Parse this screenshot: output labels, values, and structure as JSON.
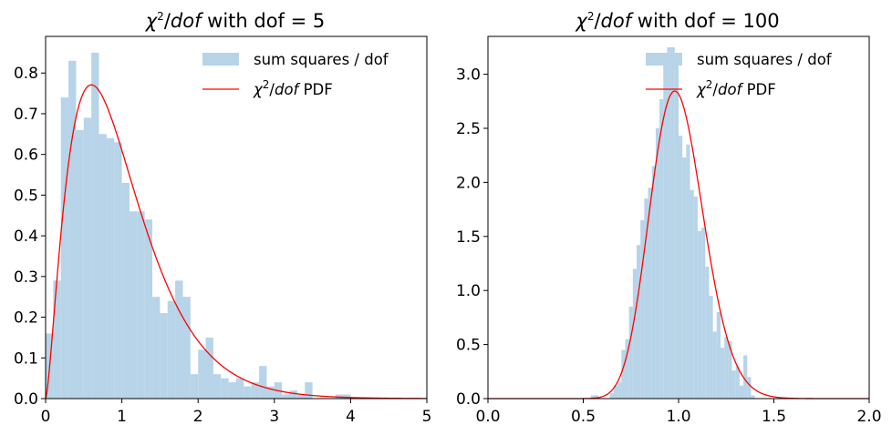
{
  "chart_data": [
    {
      "type": "histogram",
      "title": {
        "chi": "χ",
        "sup": "2",
        "slash": "/",
        "dof": "dof",
        "rest": " with dof = 5"
      },
      "xlim": [
        0,
        5
      ],
      "ylim": [
        0,
        0.89
      ],
      "xticks": [
        0,
        1,
        2,
        3,
        4,
        5
      ],
      "xtick_labels": [
        "0",
        "1",
        "2",
        "3",
        "4",
        "5"
      ],
      "yticks": [
        0.0,
        0.1,
        0.2,
        0.3,
        0.4,
        0.5,
        0.6,
        0.7,
        0.8
      ],
      "ytick_labels": [
        "0.0",
        "0.1",
        "0.2",
        "0.3",
        "0.4",
        "0.5",
        "0.6",
        "0.7",
        "0.8"
      ],
      "grid": false,
      "legend_position": "top-right",
      "series": [
        {
          "name": "sum squares / dof",
          "kind": "histogram",
          "color": "#b7d4e8",
          "bin_edges": [
            0.0,
            0.1,
            0.2,
            0.3,
            0.4,
            0.5,
            0.6,
            0.7,
            0.8,
            0.9,
            1.0,
            1.1,
            1.2,
            1.3,
            1.4,
            1.5,
            1.6,
            1.7,
            1.8,
            1.9,
            2.0,
            2.1,
            2.2,
            2.3,
            2.4,
            2.5,
            2.6,
            2.7,
            2.8,
            2.9,
            3.0,
            3.1,
            3.2,
            3.3,
            3.4,
            3.5,
            3.6,
            3.7,
            3.8,
            3.9,
            4.0,
            4.1,
            4.2,
            4.3,
            4.4,
            4.5,
            4.6,
            4.7,
            4.8,
            4.9,
            5.0
          ],
          "values": [
            0.16,
            0.29,
            0.74,
            0.83,
            0.66,
            0.69,
            0.85,
            0.65,
            0.64,
            0.63,
            0.53,
            0.46,
            0.46,
            0.44,
            0.25,
            0.21,
            0.24,
            0.29,
            0.25,
            0.06,
            0.12,
            0.15,
            0.06,
            0.05,
            0.04,
            0.05,
            0.03,
            0.04,
            0.08,
            0.03,
            0.04,
            0.01,
            0.02,
            0.01,
            0.04,
            0.0,
            0.0,
            0.0,
            0.01,
            0.01,
            0.0,
            0.0,
            0.0,
            0.0,
            0.0,
            0.0,
            0.0,
            0.0,
            0.0,
            0.0
          ]
        },
        {
          "name": {
            "chi": "χ",
            "sup": "2",
            "slash": "/",
            "dof": "dof",
            "rest": " PDF"
          },
          "kind": "pdf",
          "color": "#ff0000",
          "dof": 5
        }
      ]
    },
    {
      "type": "histogram",
      "title": {
        "chi": "χ",
        "sup": "2",
        "slash": "/",
        "dof": "dof",
        "rest": " with dof = 100"
      },
      "xlim": [
        0.0,
        2.0
      ],
      "ylim": [
        0,
        3.35
      ],
      "xticks": [
        0.0,
        0.5,
        1.0,
        1.5,
        2.0
      ],
      "xtick_labels": [
        "0.0",
        "0.5",
        "1.0",
        "1.5",
        "2.0"
      ],
      "yticks": [
        0.0,
        0.5,
        1.0,
        1.5,
        2.0,
        2.5,
        3.0
      ],
      "ytick_labels": [
        "0.0",
        "0.5",
        "1.0",
        "1.5",
        "2.0",
        "2.5",
        "3.0"
      ],
      "grid": false,
      "legend_position": "top-right",
      "series": [
        {
          "name": "sum squares / dof",
          "kind": "histogram",
          "color": "#b7d4e8",
          "bin_edges": [
            0.54,
            0.56,
            0.58,
            0.6,
            0.62,
            0.64,
            0.66,
            0.68,
            0.7,
            0.72,
            0.74,
            0.76,
            0.78,
            0.8,
            0.82,
            0.84,
            0.86,
            0.88,
            0.9,
            0.92,
            0.94,
            0.96,
            0.98,
            1.0,
            1.02,
            1.04,
            1.06,
            1.08,
            1.1,
            1.12,
            1.14,
            1.16,
            1.18,
            1.2,
            1.22,
            1.24,
            1.26,
            1.28,
            1.3,
            1.32,
            1.34,
            1.36,
            1.38,
            1.4,
            1.42
          ],
          "values": [
            0.03,
            0.03,
            0.0,
            0.0,
            0.0,
            0.05,
            0.12,
            0.15,
            0.45,
            0.55,
            0.85,
            1.2,
            1.42,
            1.65,
            1.85,
            1.95,
            2.15,
            2.5,
            2.77,
            3.1,
            3.25,
            3.25,
            3.1,
            2.43,
            2.23,
            2.35,
            1.93,
            1.87,
            1.55,
            1.58,
            1.22,
            0.95,
            0.62,
            0.8,
            0.47,
            0.57,
            0.53,
            0.26,
            0.3,
            0.12,
            0.4,
            0.2,
            0.03,
            0.0
          ]
        },
        {
          "name": {
            "chi": "χ",
            "sup": "2",
            "slash": "/",
            "dof": "dof",
            "rest": " PDF"
          },
          "kind": "pdf",
          "color": "#ff0000",
          "dof": 100
        }
      ]
    }
  ]
}
